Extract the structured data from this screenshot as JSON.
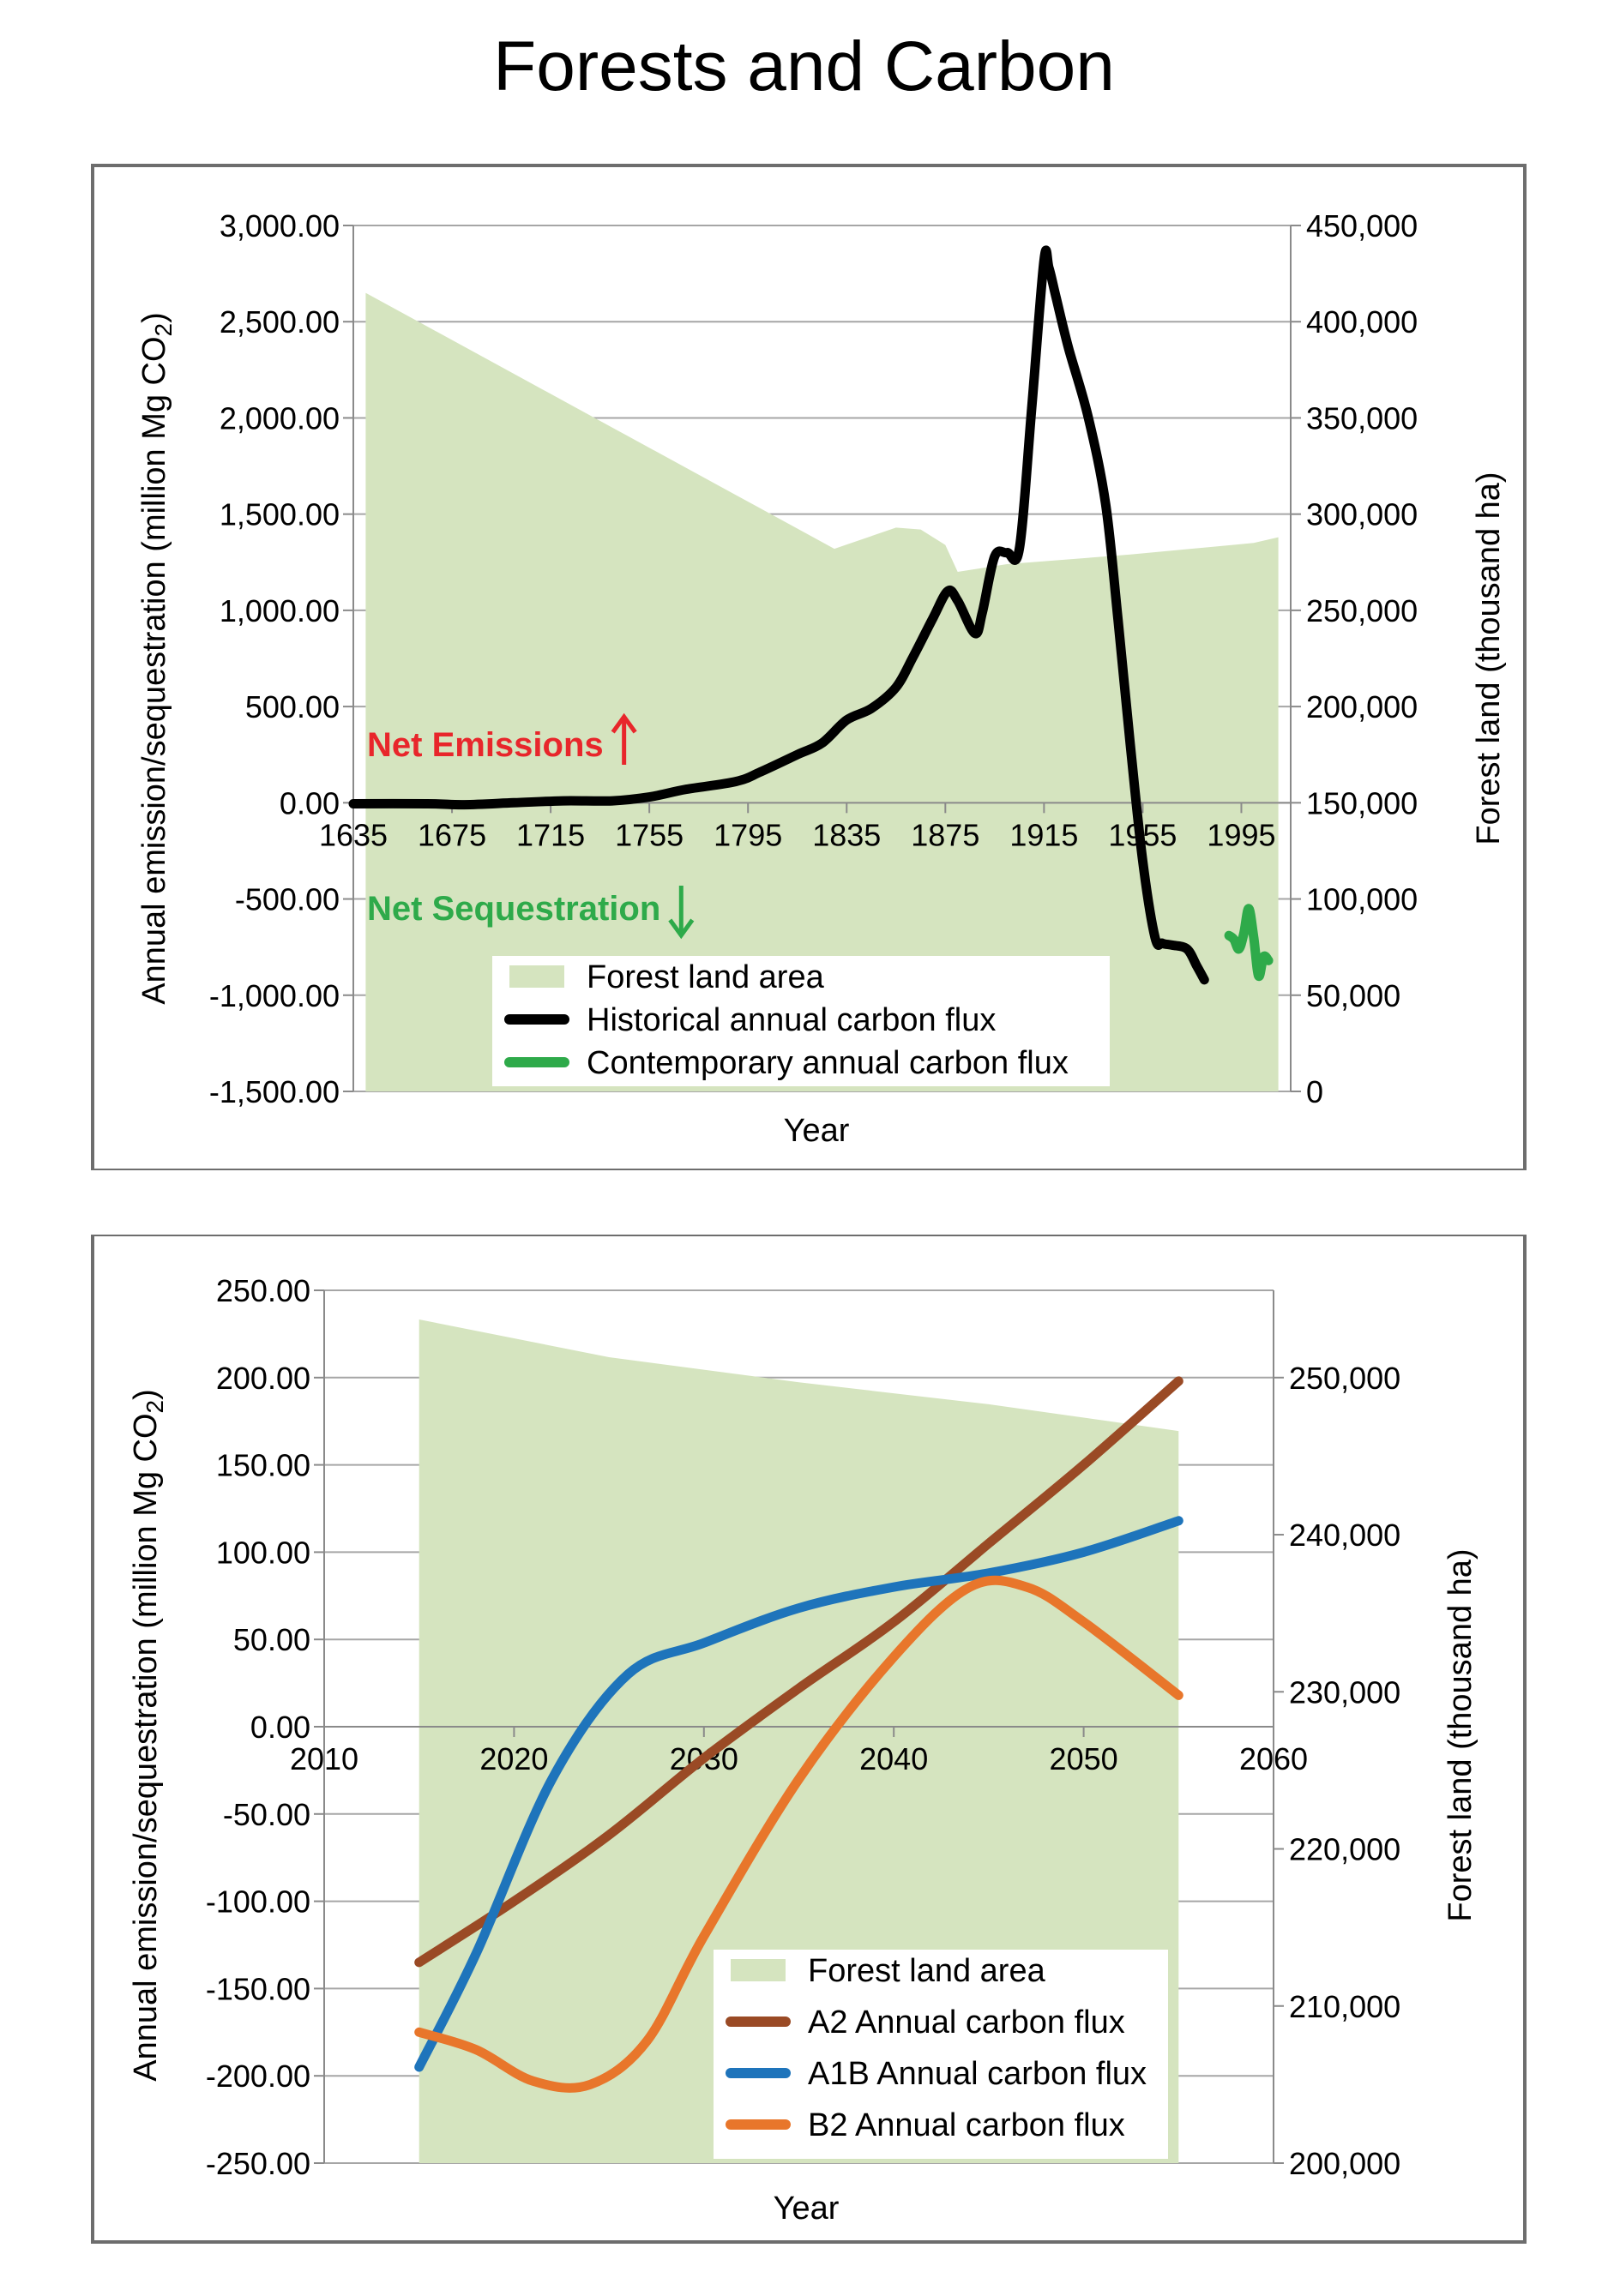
{
  "title": "Forests and Carbon",
  "chart_data": [
    {
      "type": "area",
      "xlabel": "Year",
      "ylabel_left": "Annual emission/sequestration (million Mg CO",
      "ylabel_left_sub": "2",
      "ylabel_left_end": ")",
      "ylabel_right": "Forest land (thousand ha)",
      "xlim": [
        1635,
        2015
      ],
      "ylim_left": [
        -1500,
        3000
      ],
      "ylim_right": [
        0,
        450000
      ],
      "x_ticks": [
        "1635",
        "1675",
        "1715",
        "1755",
        "1795",
        "1835",
        "1875",
        "1915",
        "1955",
        "1995"
      ],
      "y_ticks_left": [
        "3,000.00",
        "2,500.00",
        "2,000.00",
        "1,500.00",
        "1,000.00",
        "500.00",
        "0.00",
        "-500.00",
        "-1,000.00",
        "-1,500.00"
      ],
      "y_ticks_right": [
        "450,000",
        "400,000",
        "350,000",
        "300,000",
        "250,000",
        "200,000",
        "150,000",
        "100,000",
        "50,000",
        "0"
      ],
      "grid": true,
      "legend_position": "bottom-center",
      "annotations": [
        {
          "text": "Net Emissions",
          "color": "#e8262b",
          "arrow": "up"
        },
        {
          "text": "Net Sequestration",
          "color": "#2eaa4a",
          "arrow": "down"
        }
      ],
      "series": [
        {
          "name": "Forest land area",
          "kind": "area",
          "axis": "right",
          "color": "#d5e4bf",
          "x": [
            1640,
            1690,
            1740,
            1790,
            1830,
            1855,
            1865,
            1875,
            1880,
            1885,
            1890,
            1900,
            1950,
            2000,
            2010
          ],
          "values": [
            415000,
            380000,
            345000,
            310000,
            282000,
            293000,
            292000,
            284000,
            270000,
            271000,
            272000,
            274000,
            279000,
            285000,
            288000
          ]
        },
        {
          "name": "Historical annual carbon flux",
          "kind": "line",
          "axis": "left",
          "color": "#000000",
          "x": [
            1635,
            1665,
            1680,
            1700,
            1720,
            1740,
            1755,
            1770,
            1790,
            1800,
            1815,
            1825,
            1835,
            1845,
            1855,
            1862,
            1870,
            1876,
            1880,
            1887,
            1890,
            1895,
            1900,
            1905,
            1910,
            1915,
            1917,
            1920,
            1925,
            1933,
            1940,
            1945,
            1950,
            1955,
            1960,
            1963,
            1967,
            1973,
            1977,
            1980
          ],
          "values": [
            -5,
            -5,
            -10,
            0,
            10,
            10,
            30,
            70,
            110,
            160,
            250,
            310,
            430,
            490,
            600,
            760,
            960,
            1100,
            1050,
            880,
            990,
            1280,
            1300,
            1320,
            2050,
            2820,
            2780,
            2620,
            2360,
            2000,
            1550,
            950,
            300,
            -300,
            -700,
            -730,
            -740,
            -760,
            -850,
            -920
          ]
        },
        {
          "name": "Contemporary annual carbon flux",
          "kind": "line",
          "axis": "left",
          "color": "#2eaa4a",
          "x": [
            1990,
            1992,
            1994,
            1996,
            1998,
            2000,
            2002,
            2004,
            2006
          ],
          "values": [
            -690,
            -710,
            -760,
            -680,
            -550,
            -700,
            -900,
            -800,
            -820
          ]
        }
      ]
    },
    {
      "type": "area",
      "xlabel": "Year",
      "ylabel_left": "Annual emission/sequestration (million Mg CO",
      "ylabel_left_sub": "2",
      "ylabel_left_end": ")",
      "ylabel_right": "Forest land (thousand ha)",
      "xlim": [
        2010,
        2060
      ],
      "ylim_left": [
        -250,
        250
      ],
      "ylim_right": [
        200000,
        255555
      ],
      "x_ticks": [
        "2010",
        "2020",
        "2030",
        "2040",
        "2050",
        "2060"
      ],
      "y_ticks_left": [
        "250.00",
        "200.00",
        "150.00",
        "100.00",
        "50.00",
        "0.00",
        "-50.00",
        "-100.00",
        "-150.00",
        "-200.00",
        "-250.00"
      ],
      "y_ticks_right": [
        "250,000",
        "240,000",
        "230,000",
        "220,000",
        "210,000",
        "200,000"
      ],
      "grid": true,
      "legend_position": "bottom-right",
      "series": [
        {
          "name": "Forest land area",
          "kind": "area",
          "axis": "right",
          "color": "#d5e4bf",
          "x": [
            2015,
            2025,
            2035,
            2045,
            2055
          ],
          "values": [
            253700,
            251300,
            249700,
            248300,
            246600
          ]
        },
        {
          "name": "A2 Annual carbon flux",
          "kind": "line",
          "axis": "left",
          "color": "#9a4a25",
          "x": [
            2015,
            2020,
            2025,
            2030,
            2035,
            2040,
            2045,
            2050,
            2055
          ],
          "values": [
            -135,
            -100,
            -62,
            -18,
            22,
            60,
            105,
            150,
            198
          ]
        },
        {
          "name": "A1B Annual carbon flux",
          "kind": "line",
          "axis": "left",
          "color": "#1e74bb",
          "x": [
            2015,
            2018,
            2022,
            2026,
            2030,
            2035,
            2040,
            2045,
            2050,
            2055
          ],
          "values": [
            -195,
            -130,
            -30,
            30,
            48,
            68,
            80,
            88,
            100,
            118
          ]
        },
        {
          "name": "B2 Annual carbon flux",
          "kind": "line",
          "axis": "left",
          "color": "#e8762b",
          "x": [
            2015,
            2018,
            2021,
            2024,
            2027,
            2030,
            2035,
            2040,
            2044,
            2047,
            2050,
            2055
          ],
          "values": [
            -175,
            -185,
            -203,
            -205,
            -180,
            -120,
            -30,
            40,
            80,
            80,
            60,
            18
          ]
        }
      ]
    }
  ]
}
